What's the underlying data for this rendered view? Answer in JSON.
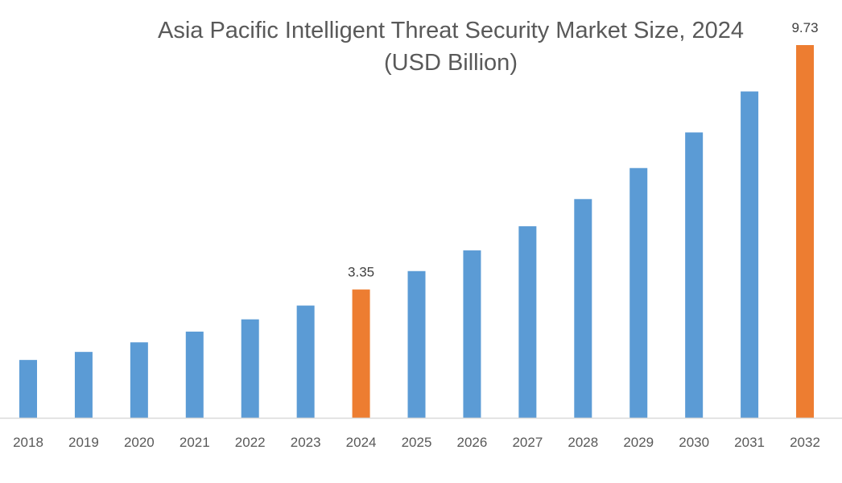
{
  "chart_data": {
    "type": "bar",
    "title": "Asia Pacific Intelligent Threat Security Market Size, 2024",
    "subtitle": "(USD Billion)",
    "xlabel": "",
    "ylabel": "",
    "categories": [
      "2018",
      "2019",
      "2020",
      "2021",
      "2022",
      "2023",
      "2024",
      "2025",
      "2026",
      "2027",
      "2028",
      "2029",
      "2030",
      "2031",
      "2032"
    ],
    "values": [
      1.51,
      1.72,
      1.97,
      2.25,
      2.57,
      2.93,
      3.35,
      3.83,
      4.37,
      5.0,
      5.71,
      6.52,
      7.45,
      8.52,
      9.73
    ],
    "highlighted": [
      "2024",
      "2032"
    ],
    "data_labels": {
      "2024": "3.35",
      "2032": "9.73"
    },
    "ylim": [
      0,
      9.73
    ],
    "grid": false,
    "legend": "none",
    "colors": {
      "default": "#5b9bd5",
      "highlight": "#ed7d31",
      "axis": "#d9d9d9"
    }
  }
}
